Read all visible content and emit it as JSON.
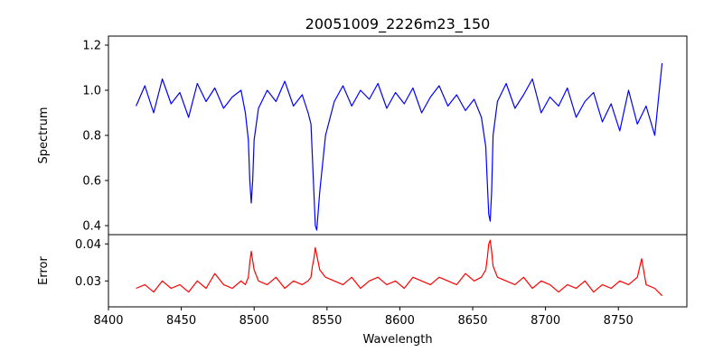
{
  "chart_data": {
    "title": "20051009_2226m23_150",
    "xlabel": "Wavelength",
    "x_ticks": [
      8400,
      8450,
      8500,
      8550,
      8600,
      8650,
      8700,
      8750
    ],
    "xlim": [
      8400,
      8797
    ],
    "grid": false,
    "panels": [
      {
        "type": "line",
        "ylabel": "Spectrum",
        "ylim": [
          0.36,
          1.24
        ],
        "y_ticks": [
          0.4,
          0.6,
          0.8,
          1.0,
          1.2
        ],
        "y_tick_labels": [
          "0.4",
          "0.6",
          "0.8",
          "1.0",
          "1.2"
        ],
        "series": [
          {
            "color": "#0000ff",
            "x": [
              8419,
              8425,
              8431,
              8437,
              8443,
              8449,
              8455,
              8461,
              8467,
              8473,
              8479,
              8485,
              8491,
              8494,
              8496,
              8497,
              8498,
              8499,
              8500,
              8503,
              8509,
              8515,
              8521,
              8527,
              8533,
              8537,
              8539,
              8540,
              8541,
              8542,
              8543,
              8545,
              8549,
              8555,
              8561,
              8567,
              8573,
              8579,
              8585,
              8591,
              8597,
              8603,
              8609,
              8615,
              8621,
              8627,
              8633,
              8639,
              8645,
              8651,
              8656,
              8659,
              8660,
              8661,
              8662,
              8663,
              8664,
              8667,
              8673,
              8679,
              8685,
              8691,
              8697,
              8703,
              8709,
              8715,
              8721,
              8727,
              8733,
              8739,
              8745,
              8751,
              8757,
              8763,
              8769,
              8775,
              8780
            ],
            "y": [
              0.93,
              1.02,
              0.9,
              1.05,
              0.94,
              0.99,
              0.88,
              1.03,
              0.95,
              1.01,
              0.92,
              0.97,
              1.0,
              0.9,
              0.78,
              0.6,
              0.5,
              0.6,
              0.78,
              0.92,
              1.0,
              0.95,
              1.04,
              0.93,
              0.98,
              0.9,
              0.85,
              0.7,
              0.55,
              0.4,
              0.38,
              0.55,
              0.8,
              0.95,
              1.02,
              0.93,
              1.0,
              0.96,
              1.03,
              0.92,
              0.99,
              0.94,
              1.01,
              0.9,
              0.97,
              1.02,
              0.93,
              0.98,
              0.91,
              0.96,
              0.88,
              0.75,
              0.6,
              0.45,
              0.42,
              0.55,
              0.8,
              0.95,
              1.03,
              0.92,
              0.98,
              1.05,
              0.9,
              0.97,
              0.93,
              1.01,
              0.88,
              0.95,
              0.99,
              0.86,
              0.94,
              0.82,
              1.0,
              0.85,
              0.93,
              0.8,
              1.12
            ]
          }
        ]
      },
      {
        "type": "line",
        "ylabel": "Error",
        "ylim": [
          0.023,
          0.0425
        ],
        "y_ticks": [
          0.03,
          0.04
        ],
        "y_tick_labels": [
          "0.03",
          "0.04"
        ],
        "series": [
          {
            "color": "#ff0000",
            "x": [
              8419,
              8425,
              8431,
              8437,
              8443,
              8449,
              8455,
              8461,
              8467,
              8473,
              8479,
              8485,
              8491,
              8494,
              8496,
              8497,
              8498,
              8500,
              8503,
              8509,
              8515,
              8521,
              8527,
              8533,
              8537,
              8539,
              8540,
              8541,
              8542,
              8543,
              8545,
              8549,
              8555,
              8561,
              8567,
              8573,
              8579,
              8585,
              8591,
              8597,
              8603,
              8609,
              8615,
              8621,
              8627,
              8633,
              8639,
              8645,
              8651,
              8656,
              8659,
              8660,
              8661,
              8662,
              8663,
              8664,
              8667,
              8673,
              8679,
              8685,
              8691,
              8697,
              8703,
              8709,
              8715,
              8721,
              8727,
              8733,
              8739,
              8745,
              8751,
              8757,
              8763,
              8766,
              8769,
              8775,
              8780
            ],
            "y": [
              0.028,
              0.029,
              0.027,
              0.03,
              0.028,
              0.029,
              0.027,
              0.03,
              0.028,
              0.032,
              0.029,
              0.028,
              0.03,
              0.029,
              0.031,
              0.035,
              0.038,
              0.033,
              0.03,
              0.029,
              0.031,
              0.028,
              0.03,
              0.029,
              0.03,
              0.031,
              0.034,
              0.036,
              0.039,
              0.037,
              0.033,
              0.031,
              0.03,
              0.029,
              0.031,
              0.028,
              0.03,
              0.031,
              0.029,
              0.03,
              0.028,
              0.031,
              0.03,
              0.029,
              0.031,
              0.03,
              0.029,
              0.032,
              0.03,
              0.031,
              0.033,
              0.036,
              0.04,
              0.041,
              0.038,
              0.034,
              0.031,
              0.03,
              0.029,
              0.031,
              0.028,
              0.03,
              0.029,
              0.027,
              0.029,
              0.028,
              0.03,
              0.027,
              0.029,
              0.028,
              0.03,
              0.029,
              0.031,
              0.036,
              0.029,
              0.028,
              0.026
            ]
          }
        ]
      }
    ]
  }
}
